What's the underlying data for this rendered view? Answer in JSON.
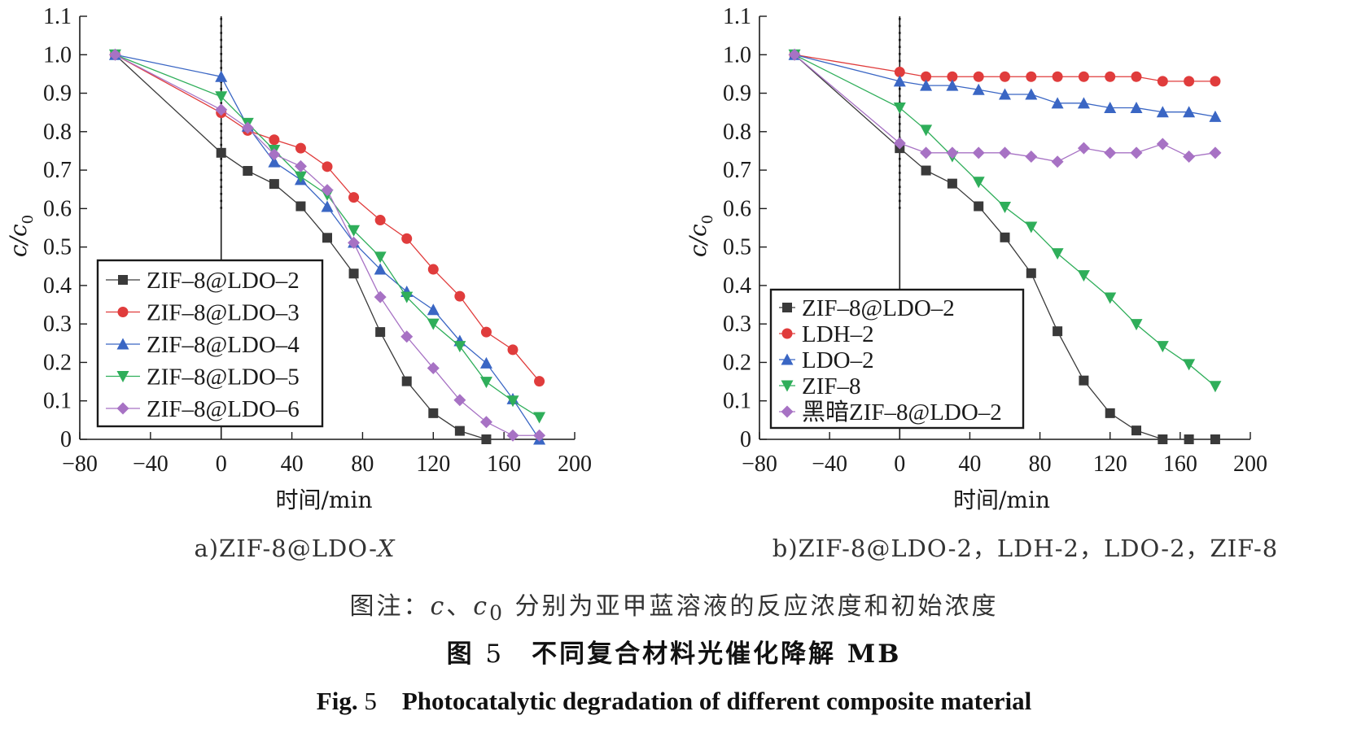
{
  "chart_data": [
    {
      "type": "line",
      "panel_label": "a)ZIF-8@LDO-X",
      "xlabel": "时间/min",
      "ylabel": "c/c0",
      "xlim": [
        -80,
        200
      ],
      "ylim": [
        0,
        1.1
      ],
      "xticks": [
        -80,
        -40,
        0,
        40,
        80,
        120,
        160,
        200
      ],
      "yticks": [
        0,
        0.1,
        0.2,
        0.3,
        0.4,
        0.5,
        0.6,
        0.7,
        0.8,
        0.9,
        1.0,
        1.1
      ],
      "ytick_labels": [
        "0",
        "0.1",
        "0.2",
        "0.3",
        "0.4",
        "0.5",
        "0.6",
        "0.7",
        "0.8",
        "0.9",
        "1.0",
        "1.1"
      ],
      "grid": false,
      "legend_position": "center-left",
      "vline_x": 0,
      "x": [
        -60,
        0,
        15,
        30,
        45,
        60,
        75,
        90,
        105,
        120,
        135,
        150,
        165,
        180
      ],
      "series": [
        {
          "name": "ZIF–8@LDO–2",
          "color": "#3a3a3a",
          "marker": "square",
          "values": [
            1.0,
            0.745,
            0.698,
            0.664,
            0.606,
            0.524,
            0.431,
            0.279,
            0.151,
            0.068,
            0.022,
            0.0,
            null,
            null
          ]
        },
        {
          "name": "ZIF–8@LDO–3",
          "color": "#e03c3c",
          "marker": "circle",
          "values": [
            1.0,
            0.849,
            0.803,
            0.779,
            0.757,
            0.709,
            0.629,
            0.57,
            0.522,
            0.442,
            0.372,
            0.279,
            0.233,
            0.151
          ]
        },
        {
          "name": "ZIF–8@LDO–4",
          "color": "#3a66c4",
          "marker": "triangle-up",
          "values": [
            1.0,
            0.943,
            0.814,
            0.721,
            0.675,
            0.605,
            0.512,
            0.442,
            0.384,
            0.337,
            0.256,
            0.198,
            0.105,
            0.0
          ]
        },
        {
          "name": "ZIF–8@LDO–5",
          "color": "#2fae5a",
          "marker": "triangle-down",
          "values": [
            1.0,
            0.891,
            0.822,
            0.752,
            0.683,
            0.636,
            0.543,
            0.474,
            0.37,
            0.3,
            0.242,
            0.149,
            0.1,
            0.057
          ]
        },
        {
          "name": "ZIF–8@LDO–6",
          "color": "#a772c4",
          "marker": "diamond",
          "values": [
            1.0,
            0.857,
            0.81,
            0.741,
            0.71,
            0.648,
            0.511,
            0.37,
            0.267,
            0.185,
            0.102,
            0.045,
            0.01,
            0.01
          ]
        }
      ]
    },
    {
      "type": "line",
      "panel_label": "b)ZIF-8@LDO-2，LDH-2，LDO-2，ZIF-8",
      "xlabel": "时间/min",
      "ylabel": "c/c0",
      "xlim": [
        -80,
        200
      ],
      "ylim": [
        0,
        1.1
      ],
      "xticks": [
        -80,
        -40,
        0,
        40,
        80,
        120,
        160,
        200
      ],
      "yticks": [
        0,
        0.1,
        0.2,
        0.3,
        0.4,
        0.5,
        0.6,
        0.7,
        0.8,
        0.9,
        1.0,
        1.1
      ],
      "ytick_labels": [
        "0",
        "0.1",
        "0.2",
        "0.3",
        "0.4",
        "0.5",
        "0.6",
        "0.7",
        "0.8",
        "0.9",
        "1.0",
        "1.1"
      ],
      "grid": false,
      "legend_position": "bottom-left",
      "vline_x": 0,
      "x": [
        -60,
        0,
        15,
        30,
        45,
        60,
        75,
        90,
        105,
        120,
        135,
        150,
        165,
        180
      ],
      "series": [
        {
          "name": "ZIF–8@LDO–2",
          "color": "#3a3a3a",
          "marker": "square",
          "values": [
            1.0,
            0.757,
            0.699,
            0.665,
            0.606,
            0.525,
            0.432,
            0.281,
            0.153,
            0.068,
            0.023,
            0.0,
            0.0,
            0.0
          ]
        },
        {
          "name": "LDH–2",
          "color": "#e03c3c",
          "marker": "circle",
          "values": [
            1.0,
            0.955,
            0.943,
            0.943,
            0.943,
            0.943,
            0.943,
            0.943,
            0.943,
            0.943,
            0.943,
            0.931,
            0.931,
            0.931
          ]
        },
        {
          "name": "LDO–2",
          "color": "#3a66c4",
          "marker": "triangle-up",
          "values": [
            1.0,
            0.931,
            0.92,
            0.92,
            0.909,
            0.897,
            0.897,
            0.874,
            0.874,
            0.862,
            0.862,
            0.851,
            0.851,
            0.839
          ]
        },
        {
          "name": "ZIF–8",
          "color": "#2fae5a",
          "marker": "triangle-down",
          "values": [
            1.0,
            0.862,
            0.804,
            0.736,
            0.669,
            0.604,
            0.552,
            0.483,
            0.426,
            0.368,
            0.299,
            0.242,
            0.195,
            0.138
          ]
        },
        {
          "name": "黑暗ZIF–8@LDO–2",
          "color": "#a772c4",
          "marker": "diamond",
          "values": [
            1.0,
            0.77,
            0.745,
            0.745,
            0.745,
            0.745,
            0.735,
            0.722,
            0.757,
            0.745,
            0.745,
            0.768,
            0.735,
            0.745
          ]
        }
      ]
    }
  ],
  "caption": {
    "note_prefix": "图注：",
    "note_var1": "c",
    "note_sep": "、",
    "note_var2": "c",
    "note_sub": "0",
    "note_rest": " 分别为亚甲蓝溶液的反应浓度和初始浓度",
    "title_cn_prefix": "图 ",
    "title_cn_num": "5",
    "title_cn_text": "　不同复合材料光催化降解 MB",
    "title_en_prefix": "Fig. ",
    "title_en_num": "5",
    "title_en_text": "　Photocatalytic degradation of different composite material"
  }
}
